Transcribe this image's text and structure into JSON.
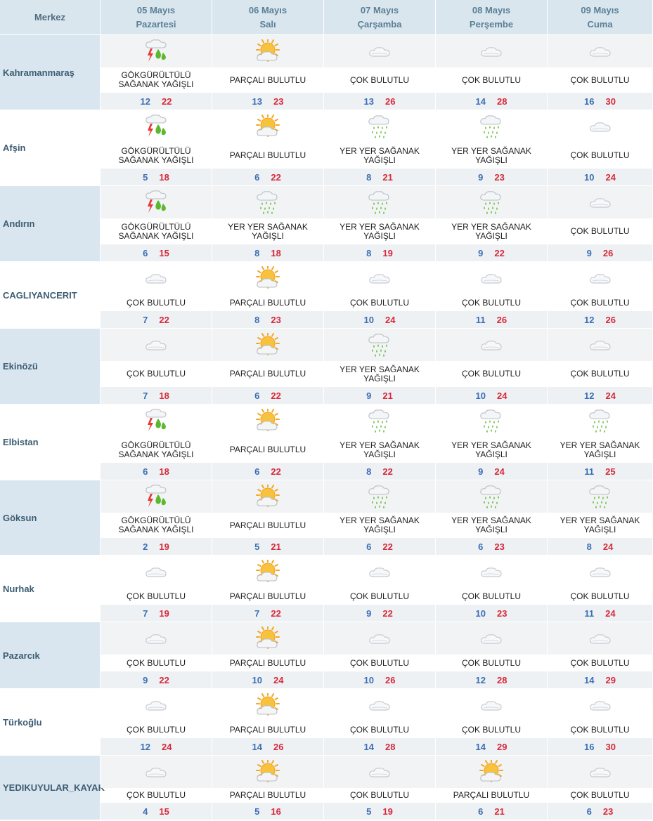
{
  "header": {
    "merkez_label": "Merkez",
    "days": [
      {
        "date": "05 Mayıs",
        "weekday": "Pazartesi"
      },
      {
        "date": "06 Mayıs",
        "weekday": "Salı"
      },
      {
        "date": "07 Mayıs",
        "weekday": "Çarşamba"
      },
      {
        "date": "08 Mayıs",
        "weekday": "Perşembe"
      },
      {
        "date": "09 Mayıs",
        "weekday": "Cuma"
      }
    ]
  },
  "rows": [
    {
      "city": "Kahramanmaraş",
      "days": [
        {
          "icon": "thunderstorm-rain-icon",
          "desc": "GÖKGÜRÜLTÜLÜ SAĞANAK YAĞIŞLI",
          "min": "12",
          "max": "22"
        },
        {
          "icon": "partly-cloudy-icon",
          "desc": "PARÇALI BULUTLU",
          "min": "13",
          "max": "23"
        },
        {
          "icon": "cloudy-icon",
          "desc": "ÇOK BULUTLU",
          "min": "13",
          "max": "26"
        },
        {
          "icon": "cloudy-icon",
          "desc": "ÇOK BULUTLU",
          "min": "14",
          "max": "28"
        },
        {
          "icon": "cloudy-icon",
          "desc": "ÇOK BULUTLU",
          "min": "16",
          "max": "30"
        }
      ]
    },
    {
      "city": "Afşin",
      "days": [
        {
          "icon": "thunderstorm-rain-icon",
          "desc": "GÖKGÜRÜLTÜLÜ SAĞANAK YAĞIŞLI",
          "min": "5",
          "max": "18"
        },
        {
          "icon": "partly-cloudy-icon",
          "desc": "PARÇALI BULUTLU",
          "min": "6",
          "max": "22"
        },
        {
          "icon": "showers-icon",
          "desc": "YER YER SAĞANAK YAĞIŞLI",
          "min": "8",
          "max": "21"
        },
        {
          "icon": "showers-icon",
          "desc": "YER YER SAĞANAK YAĞIŞLI",
          "min": "9",
          "max": "23"
        },
        {
          "icon": "cloudy-icon",
          "desc": "ÇOK BULUTLU",
          "min": "10",
          "max": "24"
        }
      ]
    },
    {
      "city": "Andırın",
      "days": [
        {
          "icon": "thunderstorm-rain-icon",
          "desc": "GÖKGÜRÜLTÜLÜ SAĞANAK YAĞIŞLI",
          "min": "6",
          "max": "15"
        },
        {
          "icon": "showers-icon",
          "desc": "YER YER SAĞANAK YAĞIŞLI",
          "min": "8",
          "max": "18"
        },
        {
          "icon": "showers-icon",
          "desc": "YER YER SAĞANAK YAĞIŞLI",
          "min": "8",
          "max": "19"
        },
        {
          "icon": "showers-icon",
          "desc": "YER YER SAĞANAK YAĞIŞLI",
          "min": "9",
          "max": "22"
        },
        {
          "icon": "cloudy-icon",
          "desc": "ÇOK BULUTLU",
          "min": "9",
          "max": "26"
        }
      ]
    },
    {
      "city": "CAGLIYANCERIT",
      "days": [
        {
          "icon": "cloudy-icon",
          "desc": "ÇOK BULUTLU",
          "min": "7",
          "max": "22"
        },
        {
          "icon": "partly-cloudy-icon",
          "desc": "PARÇALI BULUTLU",
          "min": "8",
          "max": "23"
        },
        {
          "icon": "cloudy-icon",
          "desc": "ÇOK BULUTLU",
          "min": "10",
          "max": "24"
        },
        {
          "icon": "cloudy-icon",
          "desc": "ÇOK BULUTLU",
          "min": "11",
          "max": "26"
        },
        {
          "icon": "cloudy-icon",
          "desc": "ÇOK BULUTLU",
          "min": "12",
          "max": "26"
        }
      ]
    },
    {
      "city": "Ekinözü",
      "days": [
        {
          "icon": "cloudy-icon",
          "desc": "ÇOK BULUTLU",
          "min": "7",
          "max": "18"
        },
        {
          "icon": "partly-cloudy-icon",
          "desc": "PARÇALI BULUTLU",
          "min": "6",
          "max": "22"
        },
        {
          "icon": "showers-icon",
          "desc": "YER YER SAĞANAK YAĞIŞLI",
          "min": "9",
          "max": "21"
        },
        {
          "icon": "cloudy-icon",
          "desc": "ÇOK BULUTLU",
          "min": "10",
          "max": "24"
        },
        {
          "icon": "cloudy-icon",
          "desc": "ÇOK BULUTLU",
          "min": "12",
          "max": "24"
        }
      ]
    },
    {
      "city": "Elbistan",
      "days": [
        {
          "icon": "thunderstorm-rain-icon",
          "desc": "GÖKGÜRÜLTÜLÜ SAĞANAK YAĞIŞLI",
          "min": "6",
          "max": "18"
        },
        {
          "icon": "partly-cloudy-icon",
          "desc": "PARÇALI BULUTLU",
          "min": "6",
          "max": "22"
        },
        {
          "icon": "showers-icon",
          "desc": "YER YER SAĞANAK YAĞIŞLI",
          "min": "8",
          "max": "22"
        },
        {
          "icon": "showers-icon",
          "desc": "YER YER SAĞANAK YAĞIŞLI",
          "min": "9",
          "max": "24"
        },
        {
          "icon": "showers-icon",
          "desc": "YER YER SAĞANAK YAĞIŞLI",
          "min": "11",
          "max": "25"
        }
      ]
    },
    {
      "city": "Göksun",
      "days": [
        {
          "icon": "thunderstorm-rain-icon",
          "desc": "GÖKGÜRÜLTÜLÜ SAĞANAK YAĞIŞLI",
          "min": "2",
          "max": "19"
        },
        {
          "icon": "partly-cloudy-icon",
          "desc": "PARÇALI BULUTLU",
          "min": "5",
          "max": "21"
        },
        {
          "icon": "showers-icon",
          "desc": "YER YER SAĞANAK YAĞIŞLI",
          "min": "6",
          "max": "22"
        },
        {
          "icon": "showers-icon",
          "desc": "YER YER SAĞANAK YAĞIŞLI",
          "min": "6",
          "max": "23"
        },
        {
          "icon": "showers-icon",
          "desc": "YER YER SAĞANAK YAĞIŞLI",
          "min": "8",
          "max": "24"
        }
      ]
    },
    {
      "city": "Nurhak",
      "days": [
        {
          "icon": "cloudy-icon",
          "desc": "ÇOK BULUTLU",
          "min": "7",
          "max": "19"
        },
        {
          "icon": "partly-cloudy-icon",
          "desc": "PARÇALI BULUTLU",
          "min": "7",
          "max": "22"
        },
        {
          "icon": "cloudy-icon",
          "desc": "ÇOK BULUTLU",
          "min": "9",
          "max": "22"
        },
        {
          "icon": "cloudy-icon",
          "desc": "ÇOK BULUTLU",
          "min": "10",
          "max": "23"
        },
        {
          "icon": "cloudy-icon",
          "desc": "ÇOK BULUTLU",
          "min": "11",
          "max": "24"
        }
      ]
    },
    {
      "city": "Pazarcık",
      "days": [
        {
          "icon": "cloudy-icon",
          "desc": "ÇOK BULUTLU",
          "min": "9",
          "max": "22"
        },
        {
          "icon": "partly-cloudy-icon",
          "desc": "PARÇALI BULUTLU",
          "min": "10",
          "max": "24"
        },
        {
          "icon": "cloudy-icon",
          "desc": "ÇOK BULUTLU",
          "min": "10",
          "max": "26"
        },
        {
          "icon": "cloudy-icon",
          "desc": "ÇOK BULUTLU",
          "min": "12",
          "max": "28"
        },
        {
          "icon": "cloudy-icon",
          "desc": "ÇOK BULUTLU",
          "min": "14",
          "max": "29"
        }
      ]
    },
    {
      "city": "Türkoğlu",
      "days": [
        {
          "icon": "cloudy-icon",
          "desc": "ÇOK BULUTLU",
          "min": "12",
          "max": "24"
        },
        {
          "icon": "partly-cloudy-icon",
          "desc": "PARÇALI BULUTLU",
          "min": "14",
          "max": "26"
        },
        {
          "icon": "cloudy-icon",
          "desc": "ÇOK BULUTLU",
          "min": "14",
          "max": "28"
        },
        {
          "icon": "cloudy-icon",
          "desc": "ÇOK BULUTLU",
          "min": "14",
          "max": "29"
        },
        {
          "icon": "cloudy-icon",
          "desc": "ÇOK BULUTLU",
          "min": "16",
          "max": "30"
        }
      ]
    },
    {
      "city": "YEDIKUYULAR_KAYAK",
      "days": [
        {
          "icon": "cloudy-icon",
          "desc": "ÇOK BULUTLU",
          "min": "4",
          "max": "15"
        },
        {
          "icon": "partly-cloudy-icon",
          "desc": "PARÇALI BULUTLU",
          "min": "5",
          "max": "16"
        },
        {
          "icon": "cloudy-icon",
          "desc": "ÇOK BULUTLU",
          "min": "5",
          "max": "19"
        },
        {
          "icon": "partly-cloudy-icon",
          "desc": "PARÇALI BULUTLU",
          "min": "6",
          "max": "21"
        },
        {
          "icon": "cloudy-icon",
          "desc": "ÇOK BULUTLU",
          "min": "6",
          "max": "23"
        }
      ]
    }
  ]
}
